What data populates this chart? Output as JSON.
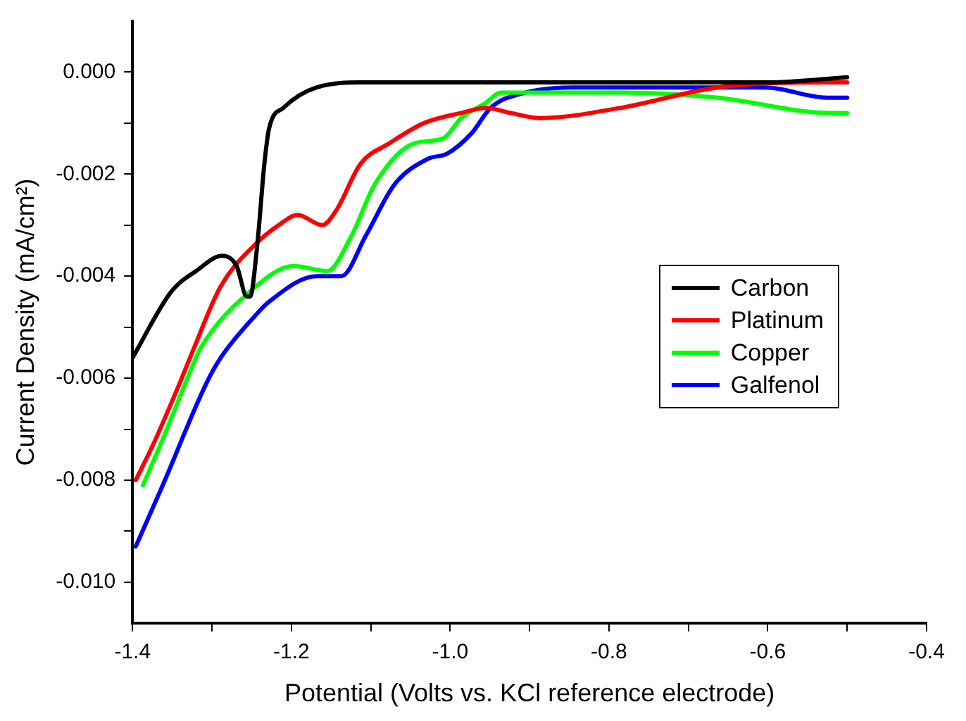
{
  "chart_data": {
    "type": "line",
    "xlabel": "Potential (Volts vs. KCl reference electrode)",
    "ylabel": "Current Density (mA/cm²)",
    "xlim": [
      -1.4,
      -0.4
    ],
    "ylim": [
      -0.0108,
      0.001
    ],
    "xticks": [
      {
        "value": -1.4,
        "label": "-1.4"
      },
      {
        "value": -1.3,
        "label": null
      },
      {
        "value": -1.2,
        "label": "-1.2"
      },
      {
        "value": -1.1,
        "label": null
      },
      {
        "value": -1.0,
        "label": "-1.0"
      },
      {
        "value": -0.9,
        "label": null
      },
      {
        "value": -0.8,
        "label": "-0.8"
      },
      {
        "value": -0.7,
        "label": null
      },
      {
        "value": -0.6,
        "label": "-0.6"
      },
      {
        "value": -0.5,
        "label": null
      },
      {
        "value": -0.4,
        "label": "-0.4"
      }
    ],
    "yticks": [
      {
        "value": 0,
        "label": "0.000"
      },
      {
        "value": -0.001,
        "label": null
      },
      {
        "value": -0.002,
        "label": "-0.002"
      },
      {
        "value": -0.003,
        "label": null
      },
      {
        "value": -0.004,
        "label": "-0.004"
      },
      {
        "value": -0.005,
        "label": null
      },
      {
        "value": -0.006,
        "label": "-0.006"
      },
      {
        "value": -0.007,
        "label": null
      },
      {
        "value": -0.008,
        "label": "-0.008"
      },
      {
        "value": -0.009,
        "label": null
      },
      {
        "value": -0.01,
        "label": "-0.010"
      }
    ],
    "grid": false,
    "legend": "right",
    "marker": "none",
    "line_style": "solid",
    "series": [
      {
        "name": "Carbon",
        "color": "#000000",
        "x": [
          -1.4,
          -1.351,
          -1.32,
          -1.287,
          -1.269,
          -1.256,
          -1.252,
          -1.243,
          -1.234,
          -1.228,
          -1.21,
          -1.168,
          -1.106,
          -0.986,
          -0.8,
          -0.6,
          -0.5
        ],
        "values": [
          -0.0056,
          -0.0043,
          -0.0039,
          -0.0036,
          -0.0038,
          -0.0044,
          -0.0044,
          -0.0034,
          -0.0018,
          -0.0011,
          -0.0007,
          -0.0003,
          -0.0002,
          -0.0002,
          -0.0002,
          -0.0002,
          -0.0001
        ]
      },
      {
        "name": "Platinum",
        "color": "#ff0000",
        "x": [
          -1.396,
          -1.374,
          -1.338,
          -1.325,
          -1.289,
          -1.247,
          -1.216,
          -1.192,
          -1.161,
          -1.143,
          -1.113,
          -1.077,
          -1.033,
          -0.986,
          -0.955,
          -0.924,
          -0.887,
          -0.785,
          -0.663,
          -0.522,
          -0.5
        ],
        "values": [
          -0.008,
          -0.0073,
          -0.006,
          -0.0055,
          -0.0042,
          -0.0034,
          -0.003,
          -0.0028,
          -0.003,
          -0.0027,
          -0.0018,
          -0.0014,
          -0.001,
          -0.0008,
          -0.0007,
          -0.0008,
          -0.0009,
          -0.0007,
          -0.0003,
          -0.0002,
          -0.0002
        ]
      },
      {
        "name": "Copper",
        "color": "#00ff00",
        "x": [
          -1.387,
          -1.362,
          -1.32,
          -1.314,
          -1.252,
          -1.197,
          -1.155,
          -1.124,
          -1.095,
          -1.046,
          -1.009,
          -0.986,
          -0.955,
          -0.936,
          -0.785,
          -0.663,
          -0.522,
          -0.5
        ],
        "values": [
          -0.0081,
          -0.0072,
          -0.0056,
          -0.0054,
          -0.0043,
          -0.0038,
          -0.0039,
          -0.0032,
          -0.0022,
          -0.0014,
          -0.0013,
          -0.0009,
          -0.0006,
          -0.0004,
          -0.0004,
          -0.0005,
          -0.0008,
          -0.0008
        ]
      },
      {
        "name": "Galfenol",
        "color": "#0000ff",
        "x": [
          -1.396,
          -1.362,
          -1.307,
          -1.289,
          -1.247,
          -1.228,
          -1.168,
          -1.137,
          -1.106,
          -1.07,
          -1.028,
          -1.004,
          -0.973,
          -0.949,
          -0.905,
          -0.845,
          -0.603,
          -0.526,
          -0.5
        ],
        "values": [
          -0.0093,
          -0.0081,
          -0.0061,
          -0.0056,
          -0.0048,
          -0.0045,
          -0.004,
          -0.004,
          -0.0032,
          -0.0022,
          -0.0017,
          -0.0016,
          -0.0012,
          -0.0007,
          -0.0004,
          -0.0003,
          -0.0003,
          -0.0005,
          -0.0005
        ]
      }
    ]
  }
}
